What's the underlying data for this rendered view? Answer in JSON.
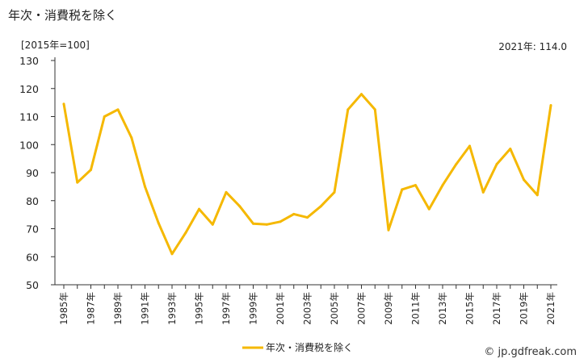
{
  "chart_data": {
    "type": "line",
    "title": "年次・消費税を除く",
    "unit_label": "[2015年=100]",
    "latest_label": "2021年: 114.0",
    "ylim": [
      50,
      130
    ],
    "yticks": [
      50,
      60,
      70,
      80,
      90,
      100,
      110,
      120,
      130
    ],
    "x": [
      "1985年",
      "1986年",
      "1987年",
      "1988年",
      "1989年",
      "1990年",
      "1991年",
      "1992年",
      "1993年",
      "1994年",
      "1995年",
      "1996年",
      "1997年",
      "1998年",
      "1999年",
      "2000年",
      "2001年",
      "2002年",
      "2003年",
      "2004年",
      "2005年",
      "2006年",
      "2007年",
      "2008年",
      "2009年",
      "2010年",
      "2011年",
      "2012年",
      "2013年",
      "2014年",
      "2015年",
      "2016年",
      "2017年",
      "2018年",
      "2019年",
      "2020年",
      "2021年"
    ],
    "xtick_labels": [
      "1985年",
      "1987年",
      "1989年",
      "1991年",
      "1993年",
      "1995年",
      "1997年",
      "1999年",
      "2001年",
      "2003年",
      "2005年",
      "2007年",
      "2009年",
      "2011年",
      "2013年",
      "2015年",
      "2017年",
      "2019年",
      "2021年"
    ],
    "series": [
      {
        "name": "年次・消費税を除く",
        "color": "#f5b800",
        "values": [
          114.5,
          86.5,
          91.0,
          110.0,
          112.5,
          102.5,
          85.0,
          72.0,
          61.0,
          68.5,
          77.0,
          71.5,
          83.0,
          78.0,
          71.8,
          71.5,
          72.5,
          75.2,
          74.0,
          78.0,
          83.0,
          112.5,
          118.0,
          112.5,
          69.5,
          84.0,
          85.5,
          77.0,
          85.5,
          93.0,
          99.5,
          83.0,
          93.0,
          98.5,
          87.5,
          82.0,
          114.0
        ]
      }
    ],
    "grid": false,
    "legend_position": "bottom-center"
  },
  "watermark": "© jp.gdfreak.com"
}
